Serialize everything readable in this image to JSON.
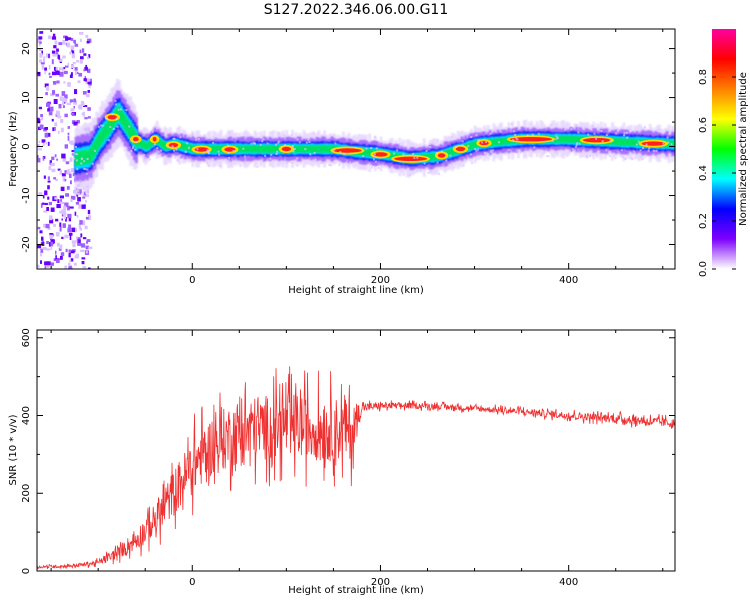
{
  "title": "S127.2022.346.06.00.G11",
  "chart_data": [
    {
      "type": "heatmap",
      "title": "",
      "xlabel": "Height of straight line (km)",
      "ylabel": "Frequency (Hz)",
      "xlim": [
        -165,
        513
      ],
      "ylim": [
        -25,
        24
      ],
      "xticks": [
        0,
        200,
        400
      ],
      "yticks": [
        -20,
        -10,
        0,
        10,
        20
      ],
      "colorbar": {
        "label": "Normalized spectral amplitude",
        "range": [
          0,
          1
        ],
        "ticks": [
          "0.0",
          "0.2",
          "0.4",
          "0.6",
          "0.8"
        ],
        "colors": [
          "#ffffff",
          "#7e00ff",
          "#0000ff",
          "#00ffff",
          "#00ff00",
          "#ffff00",
          "#ff7f00",
          "#ff0000",
          "#ff00a0"
        ]
      },
      "ridge": {
        "x": [
          -125,
          -110,
          -100,
          -90,
          -80,
          -70,
          -60,
          -50,
          -40,
          -30,
          -20,
          0,
          50,
          100,
          150,
          170,
          200,
          230,
          260,
          300,
          350,
          400,
          450,
          513
        ],
        "freq": [
          -2.5,
          -2,
          1.5,
          4,
          7,
          4,
          1,
          0,
          1.5,
          0,
          0.5,
          -0.5,
          -0.5,
          -0.5,
          -0.5,
          -1,
          -1.5,
          -2.5,
          -2,
          0.5,
          1.5,
          1.5,
          1,
          0.5
        ]
      },
      "grid": false
    },
    {
      "type": "line",
      "title": "",
      "xlabel": "Height of straight line (km)",
      "ylabel": "SNR (10 * v/v)",
      "xlim": [
        -165,
        513
      ],
      "ylim": [
        0,
        620
      ],
      "xticks": [
        0,
        200,
        400
      ],
      "yticks": [
        0,
        200,
        400,
        600
      ],
      "line_color": "#ef3030",
      "series": [
        {
          "x": [
            -165,
            -140,
            -120,
            -100,
            -80,
            -60,
            -40,
            -20,
            0,
            20,
            50,
            80,
            100,
            120,
            150,
            170,
            180,
            200,
            250,
            300,
            350,
            400,
            450,
            513
          ],
          "mean": [
            10,
            12,
            15,
            22,
            45,
            80,
            130,
            200,
            270,
            320,
            360,
            370,
            375,
            370,
            365,
            360,
            420,
            425,
            425,
            418,
            410,
            400,
            392,
            380
          ],
          "spread": [
            5,
            6,
            8,
            12,
            25,
            45,
            70,
            100,
            120,
            130,
            140,
            140,
            140,
            140,
            140,
            130,
            20,
            15,
            12,
            12,
            14,
            16,
            18,
            20
          ]
        }
      ],
      "grid": false
    }
  ]
}
